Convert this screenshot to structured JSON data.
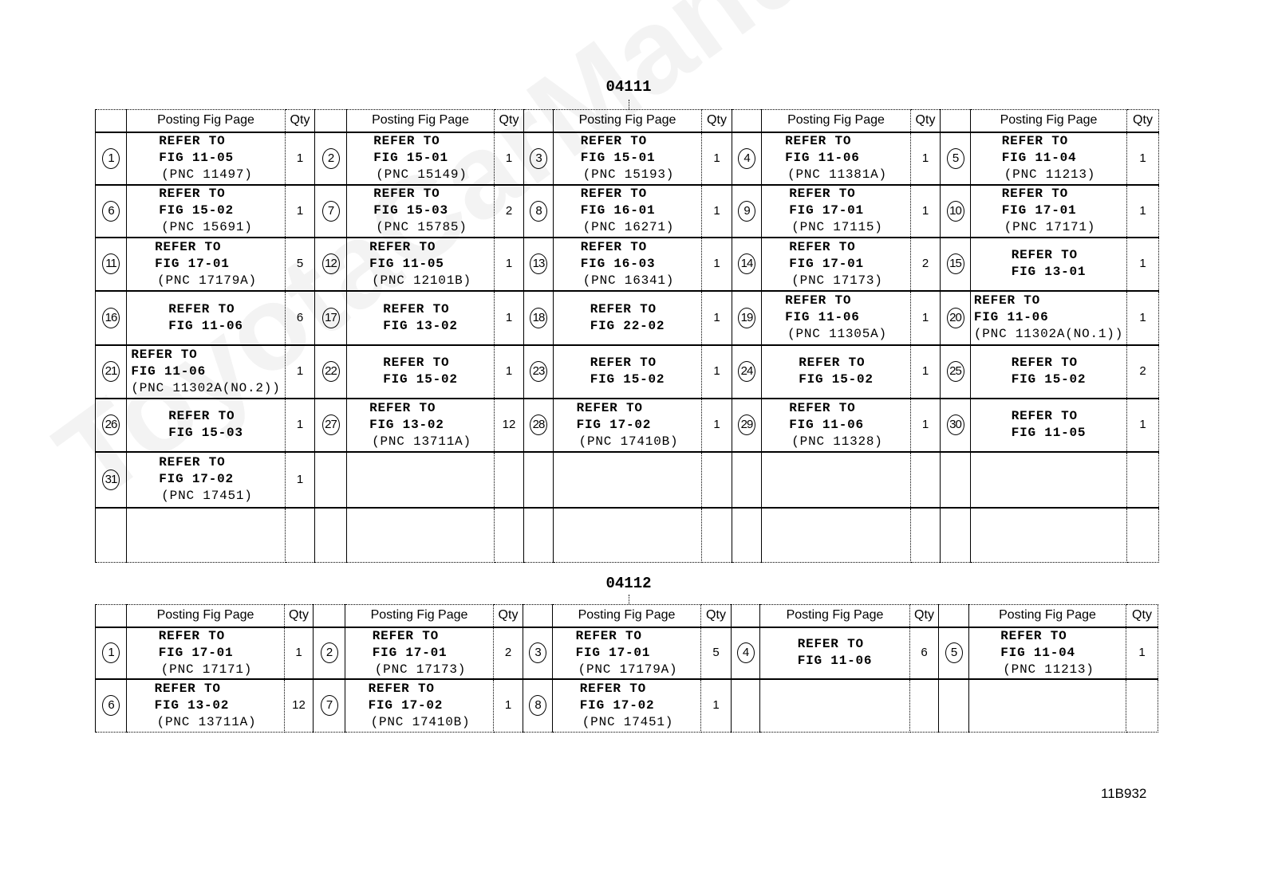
{
  "watermark": "ToyotaCarManual.ru",
  "header_labels": {
    "posting": "Posting Fig Page",
    "qty": "Qty"
  },
  "sections": [
    {
      "title": "04111",
      "rows": [
        [
          {
            "num": "1",
            "lines": [
              "REFER TO",
              "FIG 11-05",
              "(PNC 11497)"
            ],
            "qty": "1"
          },
          {
            "num": "2",
            "lines": [
              "REFER TO",
              "FIG 15-01",
              "(PNC 15149)"
            ],
            "qty": "1"
          },
          {
            "num": "3",
            "lines": [
              "REFER TO",
              "FIG 15-01",
              "(PNC 15193)"
            ],
            "qty": "1"
          },
          {
            "num": "4",
            "lines": [
              "REFER TO",
              "FIG 11-06",
              "(PNC 11381A)"
            ],
            "qty": "1"
          },
          {
            "num": "5",
            "lines": [
              "REFER TO",
              "FIG 11-04",
              "(PNC 11213)"
            ],
            "qty": "1"
          }
        ],
        [
          {
            "num": "6",
            "lines": [
              "REFER TO",
              "FIG 15-02",
              "(PNC 15691)"
            ],
            "qty": "1"
          },
          {
            "num": "7",
            "lines": [
              "REFER TO",
              "FIG 15-03",
              "(PNC 15785)"
            ],
            "qty": "2"
          },
          {
            "num": "8",
            "lines": [
              "REFER TO",
              "FIG 16-01",
              "(PNC 16271)"
            ],
            "qty": "1"
          },
          {
            "num": "9",
            "lines": [
              "REFER TO",
              "FIG 17-01",
              "(PNC 17115)"
            ],
            "qty": "1"
          },
          {
            "num": "10",
            "lines": [
              "REFER TO",
              "FIG 17-01",
              "(PNC 17171)"
            ],
            "qty": "1"
          }
        ],
        [
          {
            "num": "11",
            "lines": [
              "REFER TO",
              "FIG 17-01",
              "(PNC 17179A)"
            ],
            "qty": "5"
          },
          {
            "num": "12",
            "lines": [
              "REFER TO",
              "FIG 11-05",
              "(PNC 12101B)"
            ],
            "qty": "1"
          },
          {
            "num": "13",
            "lines": [
              "REFER TO",
              "FIG 16-03",
              "(PNC 16341)"
            ],
            "qty": "1"
          },
          {
            "num": "14",
            "lines": [
              "REFER TO",
              "FIG 17-01",
              "(PNC 17173)"
            ],
            "qty": "2"
          },
          {
            "num": "15",
            "lines": [
              "REFER TO",
              "FIG 13-01"
            ],
            "qty": "1"
          }
        ],
        [
          {
            "num": "16",
            "lines": [
              "REFER TO",
              "FIG 11-06"
            ],
            "qty": "6"
          },
          {
            "num": "17",
            "lines": [
              "REFER TO",
              "FIG 13-02"
            ],
            "qty": "1"
          },
          {
            "num": "18",
            "lines": [
              "REFER TO",
              "FIG 22-02"
            ],
            "qty": "1"
          },
          {
            "num": "19",
            "lines": [
              "REFER TO",
              "FIG 11-06",
              "(PNC 11305A)"
            ],
            "qty": "1"
          },
          {
            "num": "20",
            "lines": [
              "REFER TO",
              "FIG 11-06",
              "(PNC 11302A(NO.1))"
            ],
            "qty": "1"
          }
        ],
        [
          {
            "num": "21",
            "lines": [
              "REFER TO",
              "FIG 11-06",
              "(PNC 11302A(NO.2))"
            ],
            "qty": "1"
          },
          {
            "num": "22",
            "lines": [
              "REFER TO",
              "FIG 15-02"
            ],
            "qty": "1"
          },
          {
            "num": "23",
            "lines": [
              "REFER TO",
              "FIG 15-02"
            ],
            "qty": "1"
          },
          {
            "num": "24",
            "lines": [
              "REFER TO",
              "FIG 15-02"
            ],
            "qty": "1"
          },
          {
            "num": "25",
            "lines": [
              "REFER TO",
              "FIG 15-02"
            ],
            "qty": "2"
          }
        ],
        [
          {
            "num": "26",
            "lines": [
              "REFER TO",
              "FIG 15-03"
            ],
            "qty": "1"
          },
          {
            "num": "27",
            "lines": [
              "REFER TO",
              "FIG 13-02",
              "(PNC 13711A)"
            ],
            "qty": "12"
          },
          {
            "num": "28",
            "lines": [
              "REFER TO",
              "FIG 17-02",
              "(PNC 17410B)"
            ],
            "qty": "1"
          },
          {
            "num": "29",
            "lines": [
              "REFER TO",
              "FIG 11-06",
              "(PNC 11328)"
            ],
            "qty": "1"
          },
          {
            "num": "30",
            "lines": [
              "REFER TO",
              "FIG 11-05"
            ],
            "qty": "1"
          }
        ],
        [
          {
            "num": "31",
            "lines": [
              "REFER TO",
              "FIG 17-02",
              "(PNC 17451)"
            ],
            "qty": "1"
          },
          null,
          null,
          null,
          null
        ],
        [
          null,
          null,
          null,
          null,
          null
        ]
      ]
    },
    {
      "title": "04112",
      "rows": [
        [
          {
            "num": "1",
            "lines": [
              "REFER TO",
              "FIG 17-01",
              "(PNC 17171)"
            ],
            "qty": "1"
          },
          {
            "num": "2",
            "lines": [
              "REFER TO",
              "FIG 17-01",
              "(PNC 17173)"
            ],
            "qty": "2"
          },
          {
            "num": "3",
            "lines": [
              "REFER TO",
              "FIG 17-01",
              "(PNC 17179A)"
            ],
            "qty": "5"
          },
          {
            "num": "4",
            "lines": [
              "REFER TO",
              "FIG 11-06"
            ],
            "qty": "6"
          },
          {
            "num": "5",
            "lines": [
              "REFER TO",
              "FIG 11-04",
              "(PNC 11213)"
            ],
            "qty": "1"
          }
        ],
        [
          {
            "num": "6",
            "lines": [
              "REFER TO",
              "FIG 13-02",
              "(PNC 13711A)"
            ],
            "qty": "12"
          },
          {
            "num": "7",
            "lines": [
              "REFER TO",
              "FIG 17-02",
              "(PNC 17410B)"
            ],
            "qty": "1"
          },
          {
            "num": "8",
            "lines": [
              "REFER TO",
              "FIG 17-02",
              "(PNC 17451)"
            ],
            "qty": "1"
          },
          null,
          null
        ]
      ]
    }
  ],
  "doc_number": "11B932"
}
